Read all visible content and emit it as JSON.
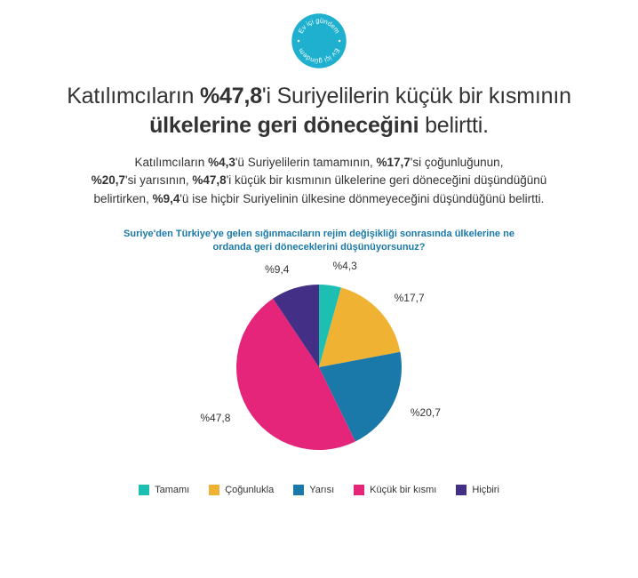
{
  "badge": {
    "text_top": "Ev içi gündem",
    "text_bottom": "Ev içi gündem",
    "bg_color": "#1eb0ce",
    "text_color": "#ffffff",
    "dot_color": "#ffffff"
  },
  "headline": {
    "parts": [
      {
        "t": "Katılımcıların ",
        "b": false
      },
      {
        "t": "%47,8",
        "b": true
      },
      {
        "t": "'i Suriyelilerin küçük bir kısmının",
        "b": false
      },
      {
        "t": "\n",
        "b": false
      },
      {
        "t": "ülkelerine geri döneceğini ",
        "b": true
      },
      {
        "t": "belirtti.",
        "b": false
      }
    ],
    "color": "#333333",
    "fontsize": 25
  },
  "subtext": {
    "parts": [
      {
        "t": "Katılımcıların ",
        "b": false
      },
      {
        "t": "%4,3",
        "b": true
      },
      {
        "t": "'ü Suriyelilerin tamamının, ",
        "b": false
      },
      {
        "t": "%17,7",
        "b": true
      },
      {
        "t": "'si çoğunluğunun,",
        "b": false
      },
      {
        "t": "\n",
        "b": false
      },
      {
        "t": "%20,7",
        "b": true
      },
      {
        "t": "'si yarısının, ",
        "b": false
      },
      {
        "t": "%47,8",
        "b": true
      },
      {
        "t": "'i küçük bir kısmının ülkelerine geri döneceğini düşündüğünü",
        "b": false
      },
      {
        "t": "\n",
        "b": false
      },
      {
        "t": "belirtirken, ",
        "b": false
      },
      {
        "t": "%9,4",
        "b": true
      },
      {
        "t": "'ü ise hiçbir Suriyelinin ülkesine dönmeyeceğini düşündüğünü belirtti.",
        "b": false
      }
    ],
    "color": "#333333",
    "fontsize": 13.5
  },
  "chart": {
    "question": "Suriye'den Türkiye'ye gelen sığınmacıların rejim değişikliği sonrasında ülkelerine ne ordanda geri döneceklerini düşünüyorsunuz?",
    "question_color": "#1a79a8",
    "type": "pie",
    "radius": 93,
    "slices": [
      {
        "label": "Tamamı",
        "pct": 4.3,
        "display": "%4,3",
        "color": "#1ebfb3"
      },
      {
        "label": "Çoğunlukla",
        "pct": 17.7,
        "display": "%17,7",
        "color": "#f0b232"
      },
      {
        "label": "Yarısı",
        "pct": 20.7,
        "display": "%20,7",
        "color": "#1a79a8"
      },
      {
        "label": "Küçük bir kısmı",
        "pct": 47.8,
        "display": "%47,8",
        "color": "#e5257a"
      },
      {
        "label": "Hiçbiri",
        "pct": 9.4,
        "display": "%9,4",
        "color": "#432f86"
      }
    ],
    "start_angle_deg": -90,
    "label_fontsize": 12,
    "label_offset": 22
  },
  "legend": {
    "items": [
      {
        "label": "Tamamı",
        "color": "#1ebfb3"
      },
      {
        "label": "Çoğunlukla",
        "color": "#f0b232"
      },
      {
        "label": "Yarısı",
        "color": "#1a79a8"
      },
      {
        "label": "Küçük bir kısmı",
        "color": "#e5257a"
      },
      {
        "label": "Hiçbiri",
        "color": "#432f86"
      }
    ],
    "swatch_size": 12,
    "fontsize": 11
  }
}
